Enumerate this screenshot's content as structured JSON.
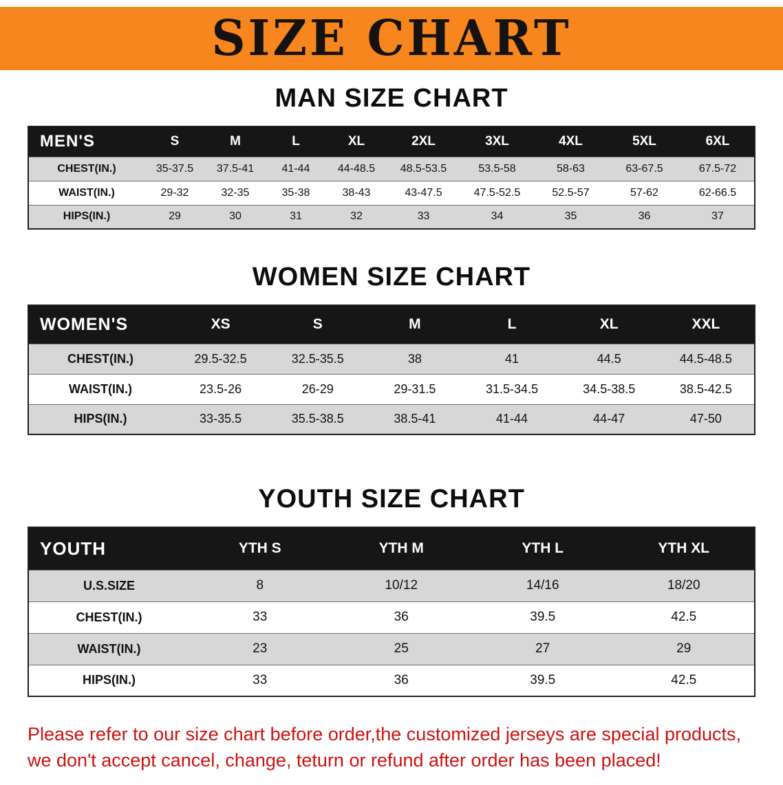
{
  "banner": {
    "title": "SIZE CHART"
  },
  "sections": [
    {
      "id": "men",
      "css": "men",
      "heading": "MAN SIZE CHART",
      "table": {
        "header": [
          "MEN'S",
          "S",
          "M",
          "L",
          "XL",
          "2XL",
          "3XL",
          "4XL",
          "5XL",
          "6XL"
        ],
        "rows": [
          [
            "CHEST(IN.)",
            "35-37.5",
            "37.5-41",
            "41-44",
            "44-48.5",
            "48.5-53.5",
            "53.5-58",
            "58-63",
            "63-67.5",
            "67.5-72"
          ],
          [
            "WAIST(IN.)",
            "29-32",
            "32-35",
            "35-38",
            "38-43",
            "43-47.5",
            "47.5-52.5",
            "52.5-57",
            "57-62",
            "62-66.5"
          ],
          [
            "HIPS(IN.)",
            "29",
            "30",
            "31",
            "32",
            "33",
            "34",
            "35",
            "36",
            "37"
          ]
        ]
      }
    },
    {
      "id": "women",
      "css": "women",
      "heading": "WOMEN SIZE CHART",
      "table": {
        "header": [
          "WOMEN'S",
          "XS",
          "S",
          "M",
          "L",
          "XL",
          "XXL"
        ],
        "rows": [
          [
            "CHEST(IN.)",
            "29.5-32.5",
            "32.5-35.5",
            "38",
            "41",
            "44.5",
            "44.5-48.5"
          ],
          [
            "WAIST(IN.)",
            "23.5-26",
            "26-29",
            "29-31.5",
            "31.5-34.5",
            "34.5-38.5",
            "38.5-42.5"
          ],
          [
            "HIPS(IN.)",
            "33-35.5",
            "35.5-38.5",
            "38.5-41",
            "41-44",
            "44-47",
            "47-50"
          ]
        ]
      }
    },
    {
      "id": "youth",
      "css": "youth",
      "heading": "YOUTH SIZE CHART",
      "table": {
        "header": [
          "YOUTH",
          "YTH S",
          "YTH M",
          "YTH L",
          "YTH XL"
        ],
        "rows": [
          [
            "U.S.SIZE",
            "8",
            "10/12",
            "14/16",
            "18/20"
          ],
          [
            "CHEST(IN.)",
            "33",
            "36",
            "39.5",
            "42.5"
          ],
          [
            "WAIST(IN.)",
            "23",
            "25",
            "27",
            "29"
          ],
          [
            "HIPS(IN.)",
            "33",
            "36",
            "39.5",
            "42.5"
          ]
        ]
      }
    }
  ],
  "footer": {
    "lines": [
      "Please refer to our size chart before order,the customized jerseys are special products,",
      "we don't accept cancel, change, teturn or refund after order has been placed!"
    ]
  },
  "colors": {
    "banner_orange": "#f6861d",
    "header_black": "#161616",
    "row_gray": "#d7d7d7",
    "notice_red": "#cc1111"
  }
}
